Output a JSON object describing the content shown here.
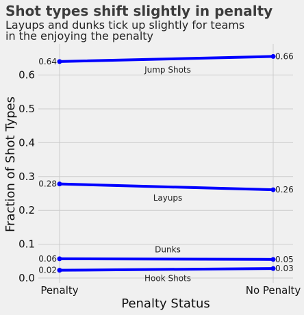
{
  "chart_data": {
    "type": "line",
    "title": "Shot types shift slightly in penalty",
    "subtitle_lines": [
      "Layups and dunks tick up slightly for teams",
      "in the enjoying the penalty"
    ],
    "xlabel": "Penalty Status",
    "ylabel": "Fraction of Shot Types",
    "categories": [
      "Penalty",
      "No Penalty"
    ],
    "ylim": [
      0,
      0.68
    ],
    "yticks": [
      "0.0",
      "0.1",
      "0.2",
      "0.3",
      "0.4",
      "0.5",
      "0.6"
    ],
    "grid": true,
    "line_color": "#0000ff",
    "series": [
      {
        "name": "Jump Shots",
        "values": [
          0.64,
          0.655
        ],
        "labels": [
          "0.64",
          "0.66"
        ]
      },
      {
        "name": "Layups",
        "values": [
          0.278,
          0.261
        ],
        "labels": [
          "0.28",
          "0.26"
        ]
      },
      {
        "name": "Dunks",
        "values": [
          0.057,
          0.055
        ],
        "labels": [
          "0.06",
          "0.05"
        ]
      },
      {
        "name": "Hook Shots",
        "values": [
          0.023,
          0.028
        ],
        "labels": [
          "0.02",
          "0.03"
        ]
      }
    ]
  }
}
